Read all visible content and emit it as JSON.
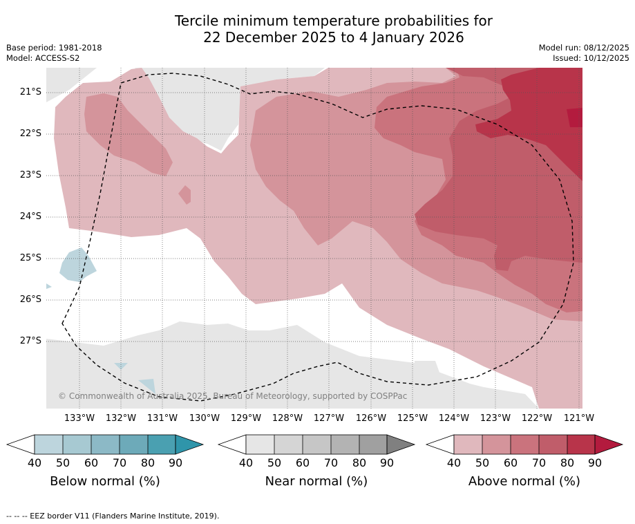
{
  "title": {
    "line1": "Tercile minimum temperature probabilities for",
    "line2": "22 December 2025 to 4 January 2026"
  },
  "meta": {
    "base_period": "Base period: 1981-2018",
    "model": "Model: ACCESS-S2",
    "model_run": "Model run: 08/12/2025",
    "issued": "Issued: 10/12/2025"
  },
  "map": {
    "copyright": "© Commonwealth of Australia 2025, Bureau of Meteorology, supported by COSPPac",
    "latitudes": [
      "21°S",
      "22°S",
      "23°S",
      "24°S",
      "25°S",
      "26°S",
      "27°S"
    ],
    "longitudes": [
      "133°W",
      "132°W",
      "131°W",
      "130°W",
      "129°W",
      "128°W",
      "127°W",
      "126°W",
      "125°W",
      "124°W",
      "123°W",
      "122°W",
      "121°W"
    ],
    "extent": {
      "lon_min": -133.8,
      "lon_max": -120.9,
      "lat_min": -28.6,
      "lat_max": -20.4
    }
  },
  "colorbars": [
    {
      "label": "Below normal (%)",
      "ticks": [
        "40",
        "50",
        "60",
        "70",
        "80",
        "90"
      ],
      "colors": [
        "#ffffff",
        "#bdd5dd",
        "#a7c9d2",
        "#8cb9c6",
        "#6daab9",
        "#4aa0b1",
        "#2f95aa"
      ]
    },
    {
      "label": "Near normal (%)",
      "ticks": [
        "40",
        "50",
        "60",
        "70",
        "80",
        "90"
      ],
      "colors": [
        "#ffffff",
        "#e6e6e6",
        "#d5d5d5",
        "#c6c6c6",
        "#b3b3b3",
        "#a0a0a0",
        "#808080"
      ]
    },
    {
      "label": "Above normal (%)",
      "ticks": [
        "40",
        "50",
        "60",
        "70",
        "80",
        "90"
      ],
      "colors": [
        "#ffffff",
        "#e0b8bd",
        "#d4949b",
        "#ca737d",
        "#c05d6a",
        "#b8344a",
        "#b31b3e"
      ]
    }
  ],
  "footnote": "--  --  -- EEZ border V11 (Flanders Marine Institute, 2019)."
}
